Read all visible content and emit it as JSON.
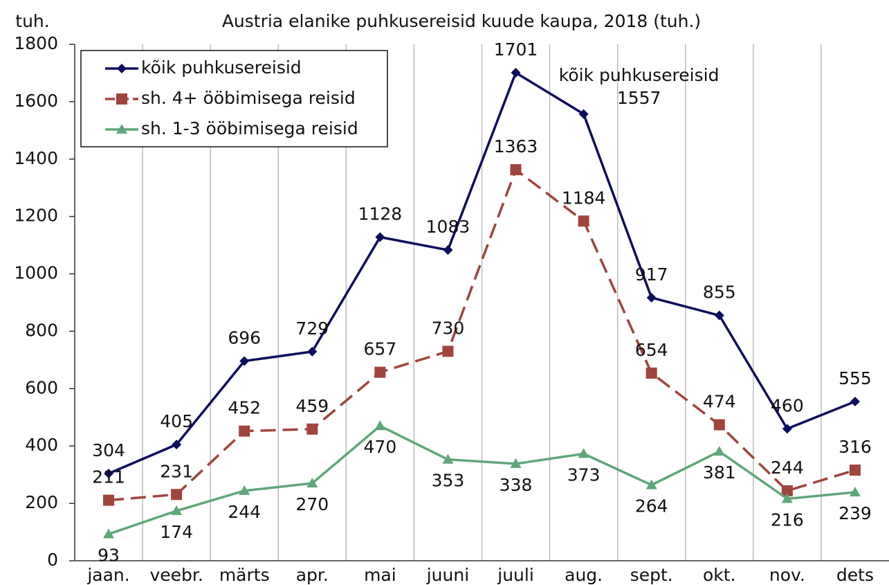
{
  "chart_data": {
    "type": "line",
    "title": "Austria elanike puhkusereisid kuude kaupa, 2018 (tuh.)",
    "y_label": "tuh.",
    "annotation": "kõik puhkusereisid",
    "categories": [
      "jaan.",
      "veebr.",
      "märts",
      "apr.",
      "mai",
      "juuni",
      "juuli",
      "aug.",
      "sept.",
      "okt.",
      "nov.",
      "dets"
    ],
    "series": [
      {
        "name": "kõik puhkusereisid",
        "color": "#0d0d5e",
        "marker": "diamond",
        "dash": false,
        "values": [
          304,
          405,
          696,
          729,
          1128,
          1083,
          1701,
          1557,
          917,
          855,
          460,
          555
        ]
      },
      {
        "name": "sh. 4+ ööbimisega reisid",
        "color": "#a0443e",
        "marker": "square",
        "dash": true,
        "values": [
          211,
          231,
          452,
          459,
          657,
          730,
          1363,
          1184,
          654,
          474,
          244,
          316
        ]
      },
      {
        "name": "sh. 1-3 ööbimisega reisid",
        "color": "#5fa67a",
        "marker": "triangle",
        "dash": false,
        "values": [
          93,
          174,
          244,
          270,
          470,
          353,
          338,
          373,
          264,
          381,
          216,
          239
        ]
      }
    ],
    "ylim": [
      0,
      1800
    ],
    "yticks": [
      0,
      200,
      400,
      600,
      800,
      1000,
      1200,
      1400,
      1600,
      1800
    ],
    "legend": "top-left",
    "vertical_grid": true
  }
}
